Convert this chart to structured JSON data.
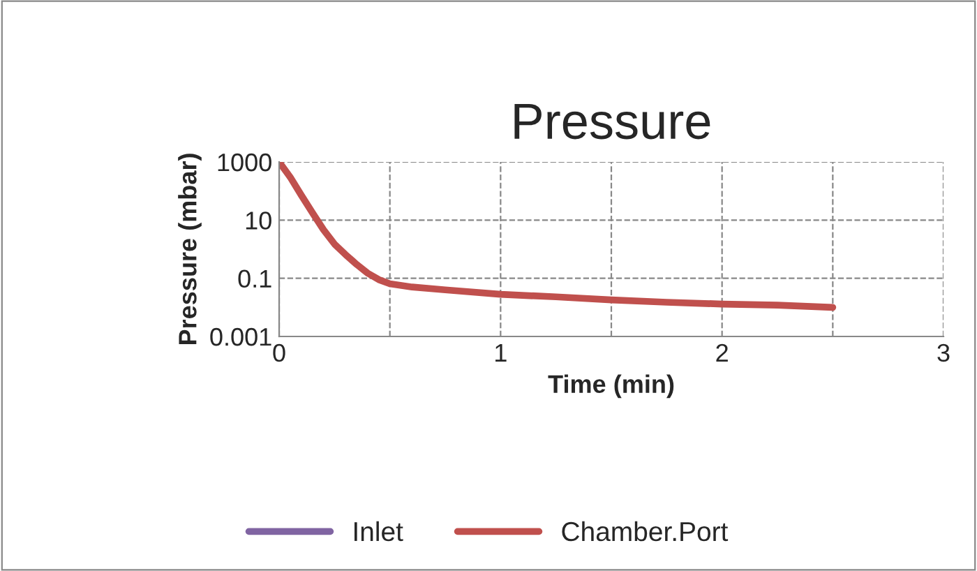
{
  "chart_data": {
    "type": "line",
    "title": "Pressure",
    "xlabel": "Time (min)",
    "ylabel": "Pressure (mbar)",
    "x": [
      0,
      0.05,
      0.1,
      0.15,
      0.2,
      0.25,
      0.3,
      0.35,
      0.4,
      0.45,
      0.5,
      0.6,
      0.75,
      1,
      1.25,
      1.5,
      1.75,
      2,
      2.25,
      2.5
    ],
    "series": [
      {
        "name": "Inlet",
        "color": "#8064a2",
        "values": [
          null,
          null,
          null,
          null,
          null,
          null,
          null,
          null,
          null,
          null,
          null,
          null,
          null,
          null,
          null,
          null,
          null,
          null,
          null,
          null
        ]
      },
      {
        "name": "Chamber.Port",
        "color": "#c0504d",
        "values": [
          1000,
          300,
          72,
          18,
          4.7,
          1.5,
          0.65,
          0.3,
          0.15,
          0.09,
          0.065,
          0.05,
          0.04,
          0.028,
          0.023,
          0.018,
          0.015,
          0.013,
          0.012,
          0.01
        ]
      }
    ],
    "log": "y",
    "xlim": [
      0,
      3
    ],
    "ylim": [
      0.001,
      1000
    ],
    "xticks": [
      0,
      {
        "value": 0.5,
        "label": null
      },
      1,
      {
        "value": 1.5,
        "label": null
      },
      2,
      {
        "value": 2.5,
        "label": null
      },
      3
    ],
    "yticks": [
      0.001,
      0.1,
      10,
      1000
    ],
    "grid": true,
    "line_style": "solid",
    "legend": "bottom"
  }
}
